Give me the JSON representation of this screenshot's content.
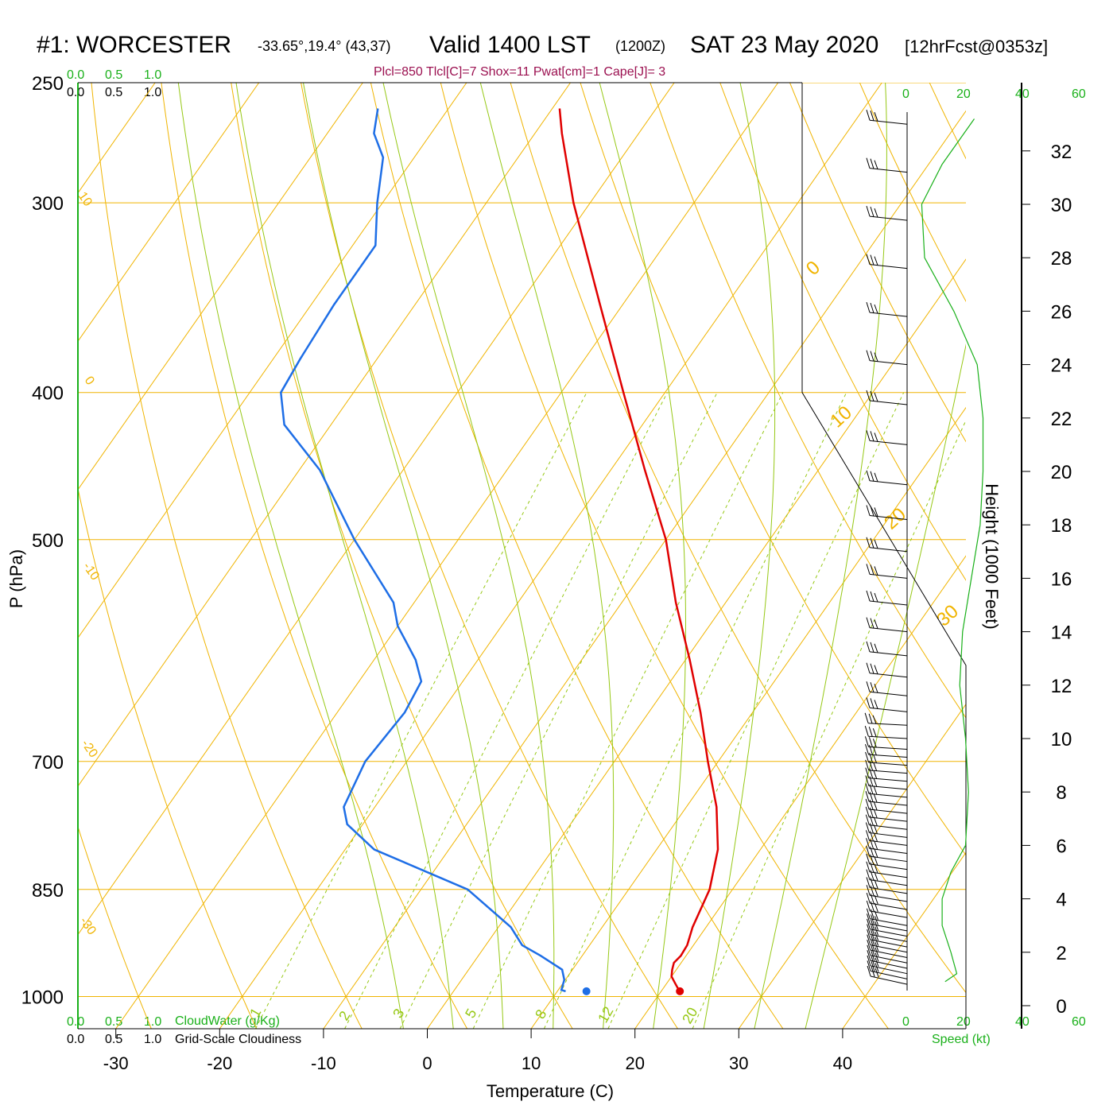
{
  "header": {
    "station": "#1: WORCESTER",
    "coords": "-33.65°,19.4° (43,37)",
    "valid": "Valid 1400 LST",
    "utc": "(1200Z)",
    "date": "SAT 23 May 2020",
    "forecast": "[12hrFcst@0353z]"
  },
  "params_line": "Plcl=850 Tlcl[C]=7 Shox=11 Pwat[cm]=1 Cape[J]= 3",
  "cloud_scale": {
    "top_green": [
      "0.0",
      "0.5",
      "1.0"
    ],
    "top_black": [
      "0.0",
      "0.5",
      "1.0"
    ],
    "bottom_green": [
      "0.0",
      "0.5",
      "1.0"
    ],
    "bottom_black": [
      "0.0",
      "0.5",
      "1.0"
    ],
    "cloudwater_label": "CloudWater (g/Kg)",
    "cloudiness_label": "Grid-Scale Cloudiness"
  },
  "speed_axis": {
    "ticks_top": [
      "0",
      "20",
      "40",
      "60"
    ],
    "ticks_bottom": [
      "0",
      "20",
      "40",
      "60"
    ],
    "label": "Speed (kt)"
  },
  "colors": {
    "isobar": "#f0b400",
    "isotherm": "#f0b400",
    "dry_adiabat": "#f0b400",
    "moist_adiabat": "#96c814",
    "mixing_ratio": "#96c814",
    "temperature": "#e00000",
    "dewpoint": "#1e6ee6",
    "speed": "#19b019",
    "cloud_axis": "#19b019"
  },
  "chart_data": {
    "type": "line",
    "title": "#1: WORCESTER",
    "xlabel": "Temperature (C)",
    "ylabel": "P (hPa)",
    "y2label": "Height (1000 Feet)",
    "x_ticks": [
      -30,
      -20,
      -10,
      0,
      10,
      20,
      30,
      40
    ],
    "p_ticks": [
      250,
      300,
      400,
      500,
      700,
      850,
      1000
    ],
    "height_ticks": [
      0,
      2,
      4,
      6,
      8,
      10,
      12,
      14,
      16,
      18,
      20,
      22,
      24,
      26,
      28,
      30,
      32
    ],
    "isotherm_labels": [
      "0",
      "10",
      "20",
      "30"
    ],
    "dry_adiabat_labels": [
      "10",
      "0",
      "-10",
      "-20",
      "-30"
    ],
    "mixing_ratio_labels": [
      "1",
      "2",
      "3",
      "5",
      "8",
      "12",
      "20"
    ],
    "isotherms": [
      -110,
      -100,
      -90,
      -80,
      -70,
      -60,
      -50,
      -40,
      -30,
      -20,
      -10,
      0,
      10,
      20,
      30,
      40
    ],
    "dry_adiabats": [
      -30,
      -20,
      -10,
      0,
      10,
      20,
      30,
      40,
      50,
      60,
      70,
      80,
      90,
      100,
      110,
      120,
      130,
      140,
      150,
      160
    ],
    "moist_adiabats": [
      -5,
      0,
      5,
      10,
      15,
      20,
      25,
      30,
      35
    ],
    "mixing_ratios": [
      1,
      2,
      3,
      5,
      8,
      12,
      20
    ],
    "temperature_series": {
      "name": "Temperature",
      "p": [
        990,
        980,
        970,
        960,
        950,
        940,
        925,
        900,
        850,
        800,
        750,
        700,
        650,
        600,
        550,
        500,
        450,
        400,
        350,
        300,
        270,
        260
      ],
      "t": [
        21.6,
        20.8,
        20.0,
        19.6,
        19.3,
        19.5,
        19.4,
        18.7,
        17.8,
        15.9,
        12.9,
        9.0,
        5.0,
        0.4,
        -4.8,
        -10.0,
        -16.7,
        -24.0,
        -32.2,
        -41.6,
        -47.4,
        -49.3
      ]
    },
    "dewpoint_series": {
      "name": "Dewpoint",
      "p": [
        992,
        990,
        975,
        960,
        940,
        925,
        900,
        850,
        800,
        770,
        750,
        700,
        650,
        620,
        600,
        570,
        550,
        500,
        450,
        420,
        400,
        380,
        350,
        320,
        300,
        280,
        270,
        260
      ],
      "td": [
        10.8,
        10.3,
        9.9,
        9.0,
        6.0,
        3.5,
        1.2,
        -5.5,
        -17.2,
        -21.5,
        -23.0,
        -24.0,
        -23.5,
        -24.0,
        -26.0,
        -30.0,
        -32.0,
        -40.0,
        -48.0,
        -54.5,
        -57.0,
        -57.4,
        -57.8,
        -57.8,
        -60.5,
        -63.0,
        -65.5,
        -66.8
      ]
    },
    "surface_dot_temperature": 21.8,
    "surface_dot_dewpoint": 12.8,
    "wind_heights_kft": [
      0.8,
      1.0,
      1.2,
      1.4,
      1.6,
      1.8,
      2.0,
      2.2,
      2.4,
      2.6,
      2.8,
      3.0,
      3.3,
      3.6,
      3.9,
      4.2,
      4.5,
      4.8,
      5.1,
      5.4,
      5.7,
      6.0,
      6.3,
      6.6,
      6.9,
      7.2,
      7.5,
      7.8,
      8.1,
      8.4,
      8.7,
      9.0,
      9.3,
      9.6,
      10.0,
      10.5,
      11.0,
      11.6,
      12.3,
      13.1,
      14.0,
      15.0,
      16.0,
      17.0,
      18.2,
      19.5,
      21.0,
      22.5,
      24.0,
      25.8,
      27.6,
      29.4,
      31.2,
      33.0
    ],
    "wind_speed_profile": {
      "height_kft": [
        0.9,
        1.2,
        2.0,
        3.0,
        4.0,
        5.0,
        6.0,
        8.0,
        10.0,
        12.0,
        14.0,
        16.0,
        18.0,
        20.0,
        22.0,
        24.0,
        26.0,
        28.0,
        30.0,
        31.5,
        33.2
      ],
      "speed_kt": [
        13,
        17,
        15,
        12,
        12,
        15,
        20,
        21,
        20,
        18,
        19,
        22,
        25,
        26,
        26,
        24,
        16,
        6,
        5,
        12,
        23
      ]
    }
  }
}
